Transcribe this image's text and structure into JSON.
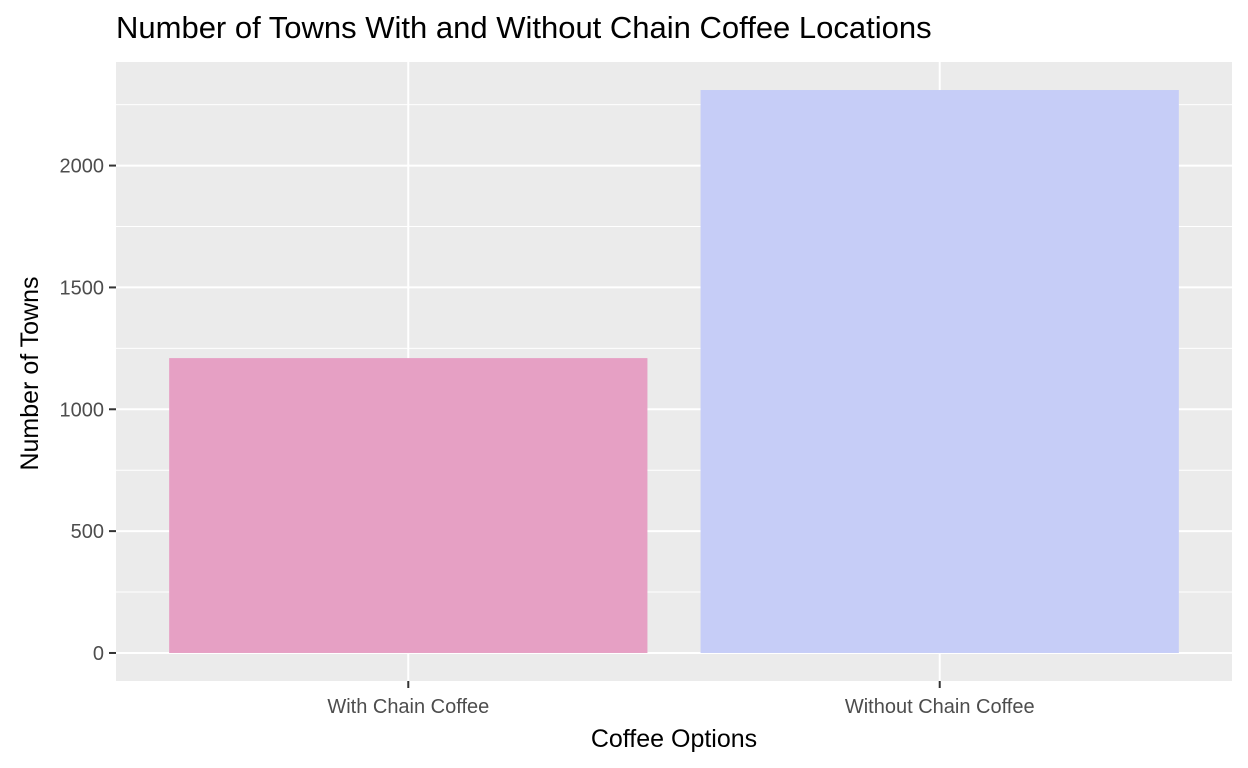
{
  "chart_data": {
    "type": "bar",
    "title": "Number of Towns With and Without Chain Coffee Locations",
    "xlabel": "Coffee Options",
    "ylabel": "Number of Towns",
    "categories": [
      "With Chain Coffee",
      "Without Chain Coffee"
    ],
    "values": [
      1210,
      2310
    ],
    "colors": [
      "#e6a0c4",
      "#c6cdf7"
    ],
    "ylim": [
      -115,
      2425
    ],
    "yticks": [
      0,
      500,
      1000,
      1500,
      2000
    ],
    "ytick_labels": [
      "0",
      "500",
      "1000",
      "1500",
      "2000"
    ],
    "grid": true,
    "panel_background": "#ebebeb",
    "grid_color": "#ffffff",
    "legend": "none"
  }
}
